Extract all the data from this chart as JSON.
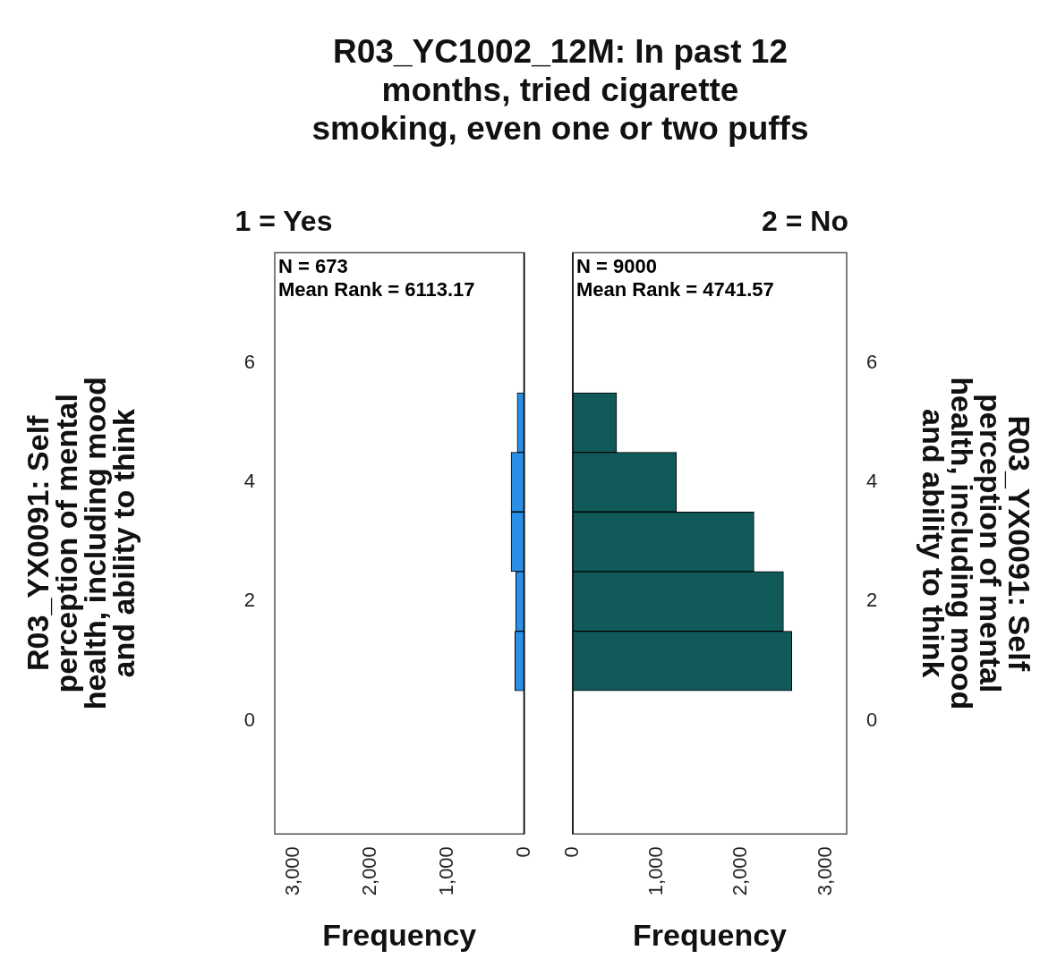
{
  "chart_data": [
    {
      "type": "histogram",
      "orientation": "horizontal",
      "title": "R03_YC1002_12M: In past 12 months, tried cigarette smoking, even one or two puffs",
      "subtitle": "1 = Yes",
      "xlabel": "Frequency",
      "ylabel": "R03_YX0091: Self perception of mental health, including mood and ability to think",
      "bins": [
        0.5,
        1.5,
        2.5,
        3.5,
        4.5,
        5.5
      ],
      "values": [
        120,
        110,
        170,
        170,
        90
      ],
      "color": "#2a8fe6",
      "xlim": [
        3250,
        0
      ],
      "xticks": [
        {
          "value": 3000,
          "label": "3,000"
        },
        {
          "value": 2000,
          "label": "2,000"
        },
        {
          "value": 1000,
          "label": "1,000"
        },
        0
      ],
      "ylim": [
        -1.9,
        7.85
      ],
      "yticks": [
        0,
        2,
        4,
        6
      ],
      "annotations": [
        "N = 673",
        "Mean Rank = 6113.17"
      ]
    },
    {
      "type": "histogram",
      "orientation": "horizontal",
      "subtitle": "2 = No",
      "xlabel": "Frequency",
      "ylabel": "R03_YX0091: Self perception of mental health, including mood and ability to think",
      "bins": [
        0.5,
        1.5,
        2.5,
        3.5,
        4.5,
        5.5
      ],
      "values": [
        2600,
        2500,
        2150,
        1230,
        520
      ],
      "color": "#115a5a",
      "xlim": [
        0,
        3250
      ],
      "xticks": [
        0,
        {
          "value": 1000,
          "label": "1,000"
        },
        {
          "value": 2000,
          "label": "2,000"
        },
        {
          "value": 3000,
          "label": "3,000"
        }
      ],
      "ylim": [
        -1.9,
        7.85
      ],
      "yticks": [
        0,
        2,
        4,
        6
      ],
      "annotations": [
        "N = 9000",
        "Mean Rank = 4741.57"
      ]
    }
  ]
}
